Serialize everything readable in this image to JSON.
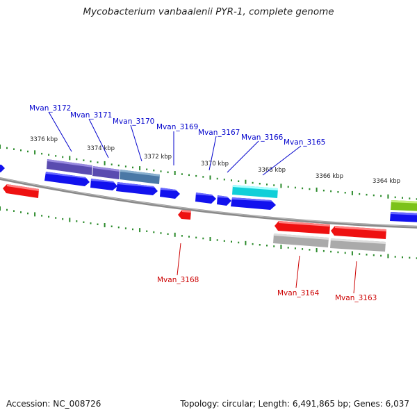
{
  "title": "Mycobacterium vanbaalenii PYR-1, complete genome",
  "footer": {
    "accession": "Accession: NC_008726",
    "topology": "Topology: circular; Length: 6,491,865 bp; Genes: 6,037"
  },
  "scale_labels": [
    "3376 kbp",
    "3374 kbp",
    "3372 kbp",
    "3370 kbp",
    "3368 kbp",
    "3366 kbp",
    "3364 kbp"
  ],
  "upper_gene_labels": [
    "Mvan_3172",
    "Mvan_3171",
    "Mvan_3170",
    "Mvan_3169",
    "Mvan_3167",
    "Mvan_3166",
    "Mvan_3165"
  ],
  "lower_gene_labels": [
    "Mvan_3168",
    "Mvan_3164",
    "Mvan_3163"
  ],
  "colors": {
    "forward_gene": "#1010ee",
    "reverse_gene": "#ee1111",
    "label_blue": "#0000cc",
    "label_red": "#cc0000",
    "tick_green": "#2a8a2a",
    "backbone": "#888888",
    "purple_feature": "#6655bb",
    "steel_feature": "#4f7fa8",
    "cyan_feature": "#22dddd",
    "gray_feature": "#b5b5b5",
    "green_feature": "#88cc22"
  }
}
